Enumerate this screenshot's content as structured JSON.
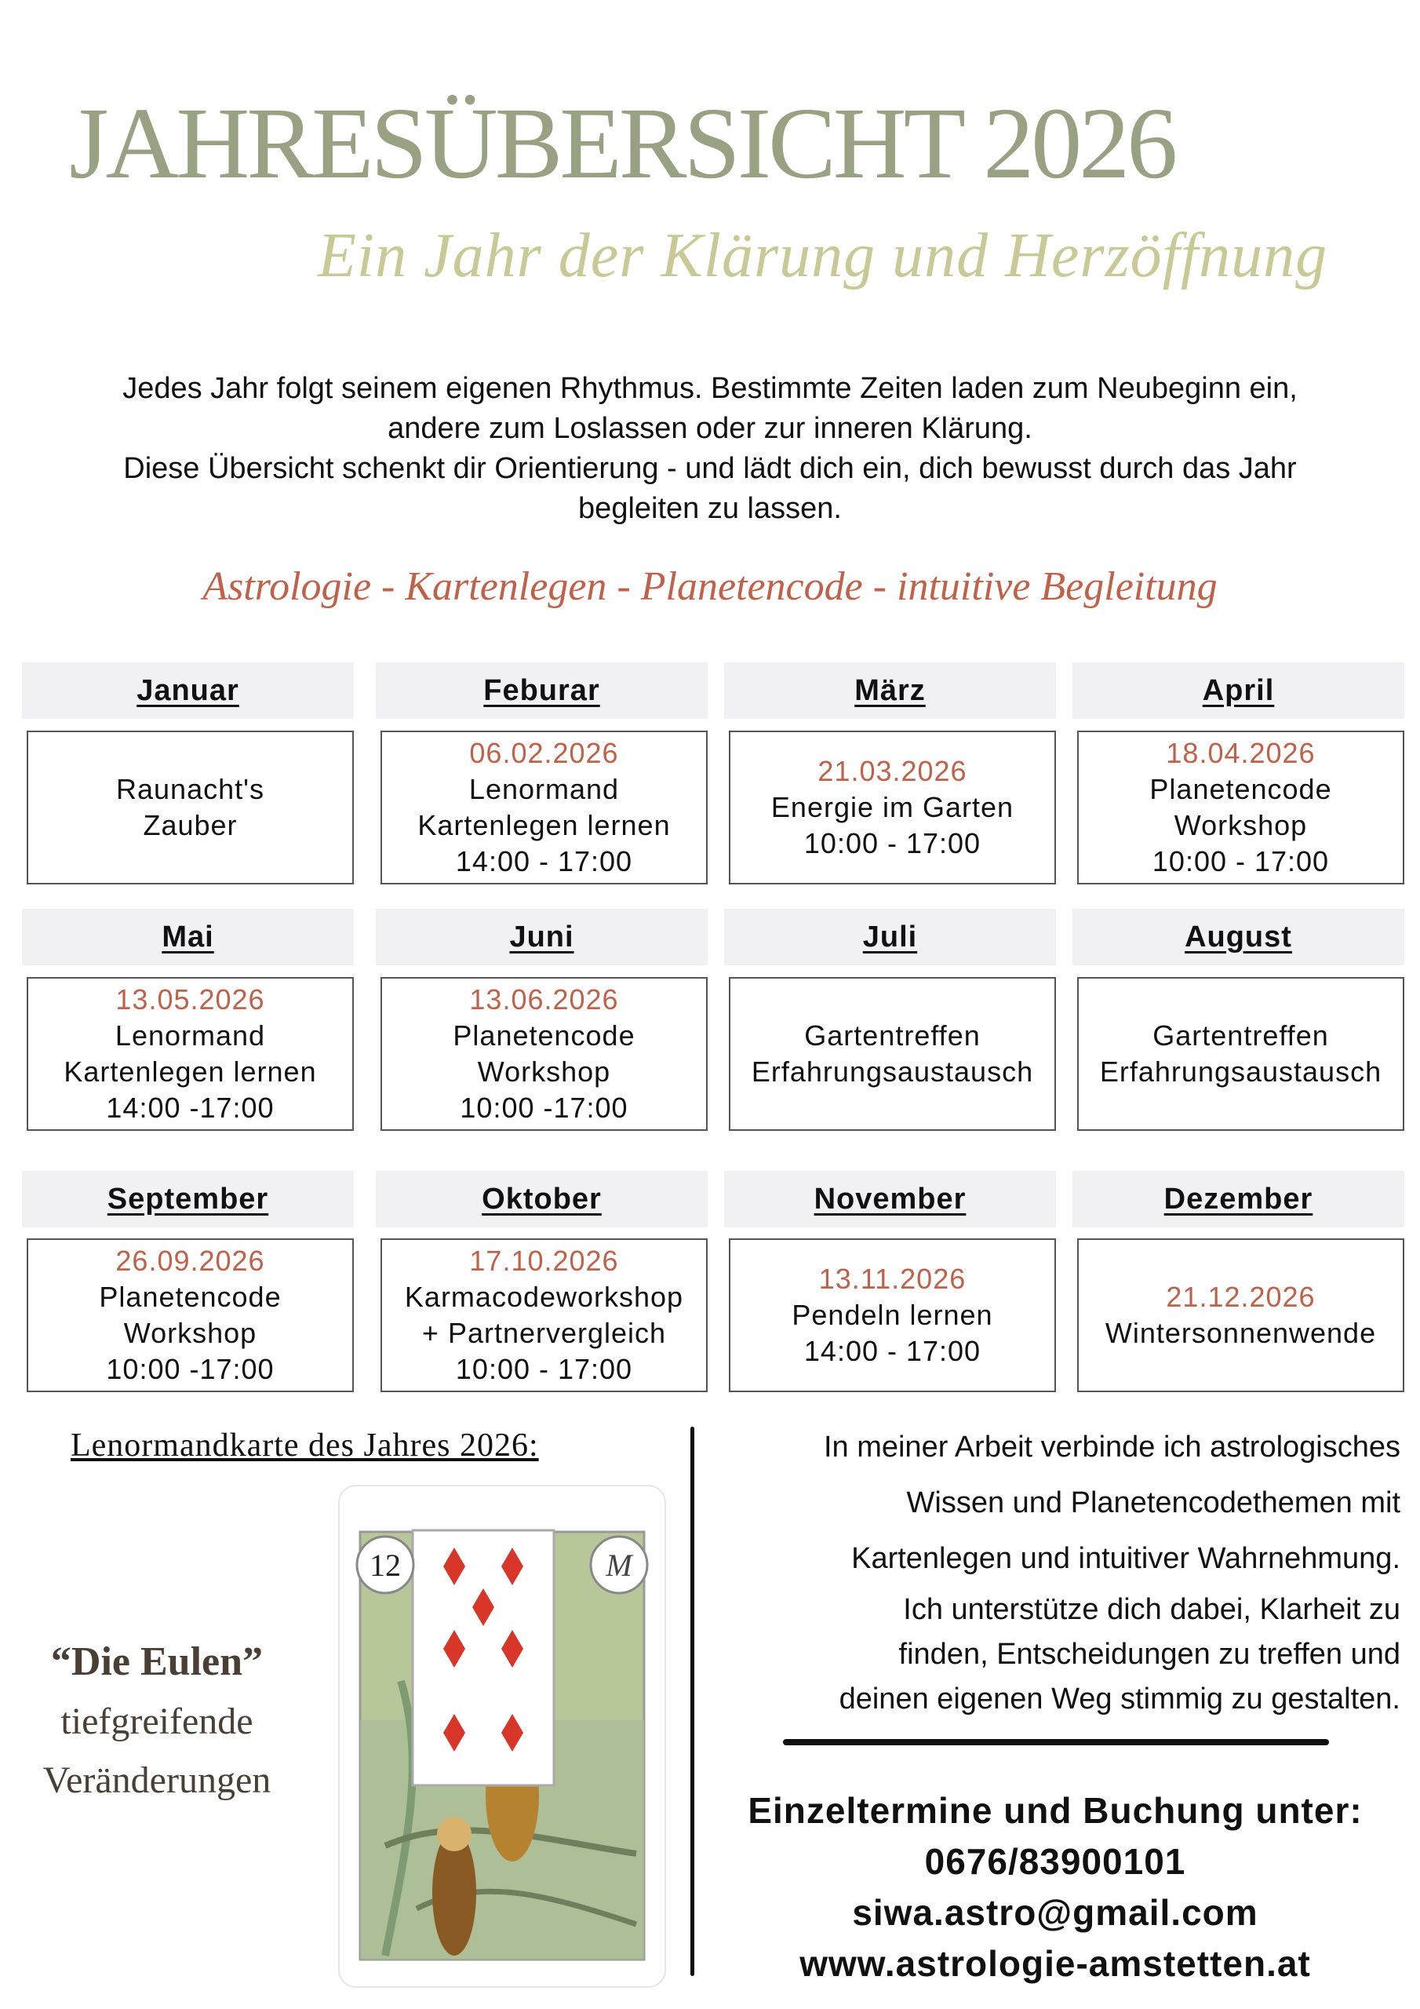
{
  "header": {
    "title": "JAHRESÜBERSICHT 2026",
    "subtitle": "Ein Jahr der Klärung und Herzöffnung"
  },
  "intro": {
    "lines": [
      "Jedes Jahr folgt seinem eigenen Rhythmus. Bestimmte Zeiten laden zum Neubeginn ein,",
      "andere zum Loslassen oder zur inneren Klärung.",
      "Diese Übersicht schenkt dir Orientierung - und lädt dich ein, dich bewusst durch das Jahr",
      "begleiten zu lassen."
    ]
  },
  "tagline": "Astrologie - Kartenlegen - Planetencode - intuitive Begleitung",
  "colors": {
    "title": "#98a283",
    "subtitle": "#c9c996",
    "accent": "#c0614a",
    "header_bg": "#f1f1f3"
  },
  "months": [
    {
      "name": "Januar",
      "date": "",
      "lines": [
        "Raunacht's",
        "Zauber"
      ]
    },
    {
      "name": "Feburar",
      "date": "06.02.2026",
      "lines": [
        "Lenormand",
        "Kartenlegen lernen",
        "14:00 - 17:00"
      ]
    },
    {
      "name": "März",
      "date": "21.03.2026",
      "lines": [
        "Energie im Garten",
        "10:00 - 17:00"
      ]
    },
    {
      "name": "April",
      "date": "18.04.2026",
      "lines": [
        "Planetencode",
        "Workshop",
        "10:00 - 17:00"
      ]
    },
    {
      "name": "Mai",
      "date": "13.05.2026",
      "lines": [
        "Lenormand",
        "Kartenlegen lernen",
        "14:00 -17:00"
      ]
    },
    {
      "name": "Juni",
      "date": "13.06.2026",
      "lines": [
        "Planetencode",
        "Workshop",
        "10:00 -17:00"
      ]
    },
    {
      "name": "Juli",
      "date": "",
      "lines": [
        "Gartentreffen",
        "Erfahrungsaustausch"
      ]
    },
    {
      "name": "August",
      "date": "",
      "lines": [
        "Gartentreffen",
        "Erfahrungsaustausch"
      ]
    },
    {
      "name": "September",
      "date": "26.09.2026",
      "lines": [
        "Planetencode",
        "Workshop",
        "10:00 -17:00"
      ]
    },
    {
      "name": "Oktober",
      "date": "17.10.2026",
      "lines": [
        "Karmacodeworkshop",
        "+ Partnervergleich",
        "10:00 - 17:00"
      ]
    },
    {
      "name": "November",
      "date": "13.11.2026",
      "lines": [
        "Pendeln lernen",
        "14:00 - 17:00"
      ]
    },
    {
      "name": "Dezember",
      "date": "21.12.2026",
      "lines": [
        "Wintersonnenwende"
      ]
    }
  ],
  "card": {
    "heading": "Lenormandkarte des Jahres 2026:",
    "name": "“Die Eulen”",
    "desc_lines": [
      "tiefgreifende",
      "Veränderungen"
    ],
    "number": "12",
    "corner_letter": "M",
    "image": "lenormand-owls-card"
  },
  "about": {
    "lines": [
      "In meiner Arbeit verbinde ich astrologisches",
      "Wissen und Planetencodethemen mit",
      "Kartenlegen und intuitiver Wahrnehmung.",
      "Ich unterstütze dich dabei, Klarheit zu",
      "finden, Entscheidungen zu treffen und",
      "deinen eigenen Weg stimmig zu gestalten."
    ]
  },
  "contact": {
    "heading": "Einzeltermine und Buchung unter:",
    "phone": "0676/83900101",
    "email": "siwa.astro@gmail.com",
    "website": "www.astrologie-amstetten.at"
  }
}
